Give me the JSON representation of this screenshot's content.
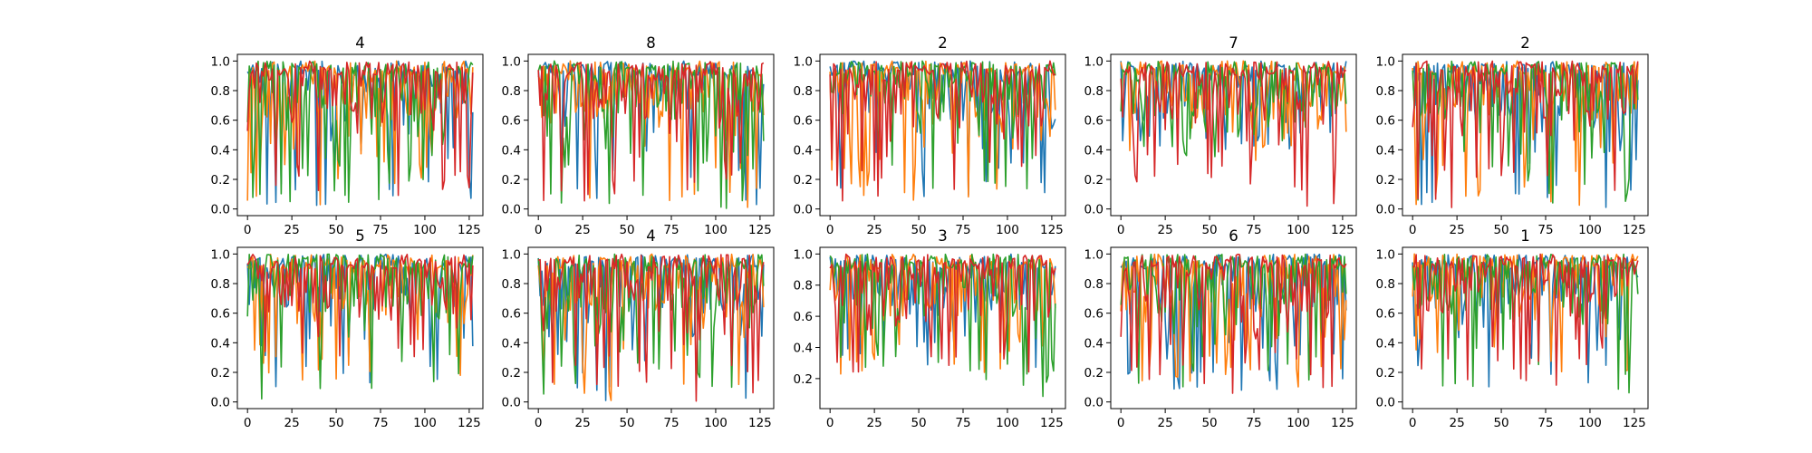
{
  "chart_data": [
    {
      "type": "line",
      "title": "4",
      "xlim": [
        0,
        127
      ],
      "ylim": [
        0,
        1
      ],
      "xticks": [
        0,
        25,
        50,
        75,
        100,
        125
      ],
      "yticks": [
        0.0,
        0.2,
        0.4,
        0.6,
        0.8,
        1.0
      ],
      "x": {
        "start": 0,
        "end": 127,
        "step": 1
      },
      "series_generator": {
        "seed": 11,
        "mins": [
          0.0,
          0.0,
          0.0,
          0.08
        ]
      }
    },
    {
      "type": "line",
      "title": "8",
      "xlim": [
        0,
        127
      ],
      "ylim": [
        0,
        1
      ],
      "xticks": [
        0,
        25,
        50,
        75,
        100,
        125
      ],
      "yticks": [
        0.0,
        0.2,
        0.4,
        0.6,
        0.8,
        1.0
      ],
      "x": {
        "start": 0,
        "end": 127,
        "step": 1
      },
      "series_generator": {
        "seed": 23,
        "mins": [
          0.0,
          0.0,
          0.0,
          0.05
        ]
      }
    },
    {
      "type": "line",
      "title": "2",
      "xlim": [
        0,
        127
      ],
      "ylim": [
        0,
        1
      ],
      "xticks": [
        0,
        25,
        50,
        75,
        100,
        125
      ],
      "yticks": [
        0.0,
        0.2,
        0.4,
        0.6,
        0.8,
        1.0
      ],
      "x": {
        "start": 0,
        "end": 127,
        "step": 1
      },
      "series_generator": {
        "seed": 37,
        "mins": [
          0.05,
          0.05,
          0.05,
          0.05
        ]
      }
    },
    {
      "type": "line",
      "title": "7",
      "xlim": [
        0,
        127
      ],
      "ylim": [
        0,
        1
      ],
      "xticks": [
        0,
        25,
        50,
        75,
        100,
        125
      ],
      "yticks": [
        0.0,
        0.2,
        0.4,
        0.6,
        0.8,
        1.0
      ],
      "x": {
        "start": 0,
        "end": 127,
        "step": 1
      },
      "series_generator": {
        "seed": 41,
        "mins": [
          0.35,
          0.3,
          0.35,
          0.02
        ]
      }
    },
    {
      "type": "line",
      "title": "2",
      "xlim": [
        0,
        127
      ],
      "ylim": [
        0,
        1
      ],
      "xticks": [
        0,
        25,
        50,
        75,
        100,
        125
      ],
      "yticks": [
        0.0,
        0.2,
        0.4,
        0.6,
        0.8,
        1.0
      ],
      "x": {
        "start": 0,
        "end": 127,
        "step": 1
      },
      "series_generator": {
        "seed": 53,
        "mins": [
          0.0,
          0.0,
          0.0,
          0.0
        ]
      }
    },
    {
      "type": "line",
      "title": "5",
      "xlim": [
        0,
        127
      ],
      "ylim": [
        0,
        1
      ],
      "xticks": [
        0,
        25,
        50,
        75,
        100,
        125
      ],
      "yticks": [
        0.0,
        0.2,
        0.4,
        0.6,
        0.8,
        1.0
      ],
      "x": {
        "start": 0,
        "end": 127,
        "step": 1
      },
      "series_generator": {
        "seed": 67,
        "mins": [
          0.1,
          0.12,
          0.0,
          0.28
        ]
      }
    },
    {
      "type": "line",
      "title": "4",
      "xlim": [
        0,
        127
      ],
      "ylim": [
        0,
        1
      ],
      "xticks": [
        0,
        25,
        50,
        75,
        100,
        125
      ],
      "yticks": [
        0.0,
        0.2,
        0.4,
        0.6,
        0.8,
        1.0
      ],
      "x": {
        "start": 0,
        "end": 127,
        "step": 1
      },
      "series_generator": {
        "seed": 71,
        "mins": [
          0.0,
          0.0,
          0.0,
          0.0
        ]
      }
    },
    {
      "type": "line",
      "title": "3",
      "xlim": [
        0,
        127
      ],
      "ylim": [
        0.05,
        1
      ],
      "xticks": [
        0,
        25,
        50,
        75,
        100,
        125
      ],
      "yticks": [
        0.2,
        0.4,
        0.6,
        0.8,
        1.0
      ],
      "x": {
        "start": 0,
        "end": 127,
        "step": 1
      },
      "series_generator": {
        "seed": 83,
        "mins": [
          0.2,
          0.2,
          0.07,
          0.2
        ]
      }
    },
    {
      "type": "line",
      "title": "6",
      "xlim": [
        0,
        127
      ],
      "ylim": [
        0,
        1
      ],
      "xticks": [
        0,
        25,
        50,
        75,
        100,
        125
      ],
      "yticks": [
        0.0,
        0.2,
        0.4,
        0.6,
        0.8,
        1.0
      ],
      "x": {
        "start": 0,
        "end": 127,
        "step": 1
      },
      "series_generator": {
        "seed": 97,
        "mins": [
          0.05,
          0.1,
          0.1,
          0.0
        ]
      }
    },
    {
      "type": "line",
      "title": "1",
      "xlim": [
        0,
        127
      ],
      "ylim": [
        0,
        1
      ],
      "xticks": [
        0,
        25,
        50,
        75,
        100,
        125
      ],
      "yticks": [
        0.0,
        0.2,
        0.4,
        0.6,
        0.8,
        1.0
      ],
      "x": {
        "start": 0,
        "end": 127,
        "step": 1
      },
      "series_generator": {
        "seed": 101,
        "mins": [
          0.1,
          0.2,
          0.0,
          0.1
        ]
      }
    }
  ],
  "series_colors": [
    "#1f77b4",
    "#ff7f0e",
    "#2ca02c",
    "#d62728"
  ]
}
